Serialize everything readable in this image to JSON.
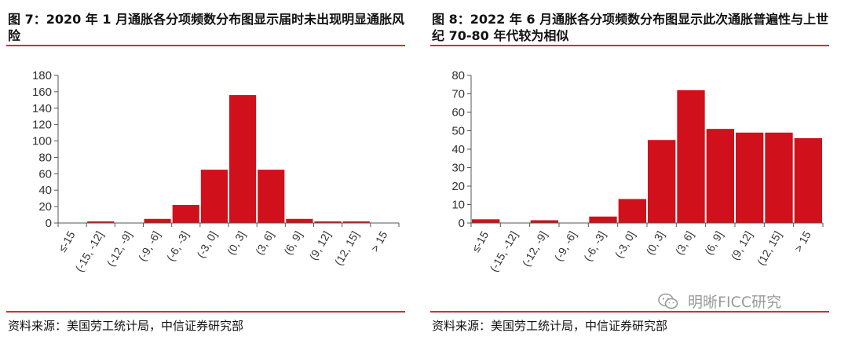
{
  "panels": [
    {
      "title": "图 7：2020 年 1 月通胀各分项频数分布图显示届时未出现明显通胀风险",
      "source": "资料来源：美国劳工统计局，中信证券研究部"
    },
    {
      "title": "图 8：2022 年 6 月通胀各分项频数分布图显示此次通胀普遍性与上世纪 70-80 年代较为相似",
      "source": "资料来源：美国劳工统计局，中信证券研究部"
    }
  ],
  "watermark": {
    "text": "明晰FICC研究",
    "icon": "wechat-icon"
  },
  "colors": {
    "bar": "#d0111b",
    "axis": "#555555",
    "rule": "#c0392b"
  },
  "chart_data": [
    {
      "type": "bar",
      "title": "",
      "categories": [
        "≤-15",
        "(-15, -12]",
        "(-12, -9]",
        "(-9, -6]",
        "(-6, -3]",
        "(-3, 0]",
        "(0, 3]",
        "(3, 6]",
        "(6, 9]",
        "(9, 12]",
        "(12, 15]",
        "> 15"
      ],
      "values": [
        0,
        2,
        0,
        5,
        22,
        65,
        156,
        65,
        5,
        2,
        2,
        0
      ],
      "ylim": [
        0,
        180
      ],
      "yticks": [
        0,
        20,
        40,
        60,
        80,
        100,
        120,
        140,
        160,
        180
      ],
      "xlabel": "",
      "ylabel": "",
      "grid": false,
      "legend": "none"
    },
    {
      "type": "bar",
      "title": "",
      "categories": [
        "≤-15",
        "(-15, -12]",
        "(-12, -9]",
        "(-9, -6]",
        "(-6, -3]",
        "(-3, 0]",
        "(0, 3]",
        "(3, 6]",
        "(6, 9]",
        "(9, 12]",
        "(12, 15]",
        "> 15"
      ],
      "values": [
        2,
        0,
        1.5,
        0,
        3.5,
        13,
        45,
        72,
        51,
        49,
        49,
        46
      ],
      "ylim": [
        0,
        80
      ],
      "yticks": [
        0,
        10,
        20,
        30,
        40,
        50,
        60,
        70,
        80
      ],
      "xlabel": "",
      "ylabel": "",
      "grid": false,
      "legend": "none"
    }
  ]
}
